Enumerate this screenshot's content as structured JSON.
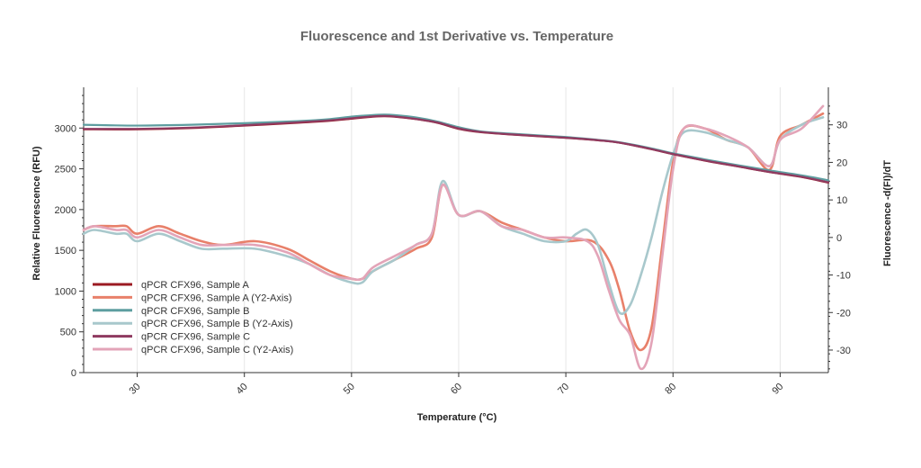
{
  "chart_data": {
    "type": "line",
    "title": "Fluorescence and 1st Derivative vs. Temperature",
    "xlabel": "Temperature (°C)",
    "ylabel": "Relative Fluorescence (RFU)",
    "y2label": "Fluorescence -d(FI)/dT",
    "xlim": [
      25,
      94.5
    ],
    "ylim": [
      0,
      3500
    ],
    "y2lim": [
      -36,
      40
    ],
    "xticks": [
      30,
      40,
      50,
      60,
      70,
      80,
      90
    ],
    "yticks": [
      0,
      500,
      1000,
      1500,
      2000,
      2500,
      3000
    ],
    "y2ticks": [
      -30,
      -20,
      -10,
      0,
      10,
      20,
      30
    ],
    "grid": "vertical",
    "legend_position": "bottom-left",
    "series": [
      {
        "name": "qPCR CFX96, Sample A",
        "axis": "y",
        "color": "#9b1a22",
        "x": [
          25,
          30,
          35,
          40,
          45,
          48,
          50,
          52,
          53,
          54,
          56,
          58,
          60,
          62,
          65,
          70,
          73,
          75,
          78,
          80,
          83,
          86,
          89,
          92,
          94.5
        ],
        "values": [
          2985,
          2985,
          3000,
          3030,
          3065,
          3090,
          3115,
          3140,
          3145,
          3140,
          3110,
          3065,
          2990,
          2950,
          2920,
          2880,
          2850,
          2820,
          2740,
          2680,
          2600,
          2530,
          2460,
          2400,
          2330
        ]
      },
      {
        "name": "qPCR CFX96, Sample A (Y2-Axis)",
        "axis": "y2",
        "color": "#e8806a",
        "x": [
          25,
          26,
          28,
          29,
          30,
          32,
          34,
          36,
          38,
          41,
          44,
          46,
          48,
          50,
          51,
          52,
          54,
          56,
          57.5,
          58.5,
          60,
          62,
          64,
          66,
          68,
          70,
          72.5,
          74,
          75,
          76,
          77,
          78,
          79,
          80,
          81,
          83,
          85,
          87,
          89,
          90,
          92,
          94
        ],
        "values": [
          2,
          3,
          3,
          3,
          1,
          3,
          1,
          -1,
          -2,
          -1,
          -3,
          -6,
          -9,
          -11,
          -11,
          -9,
          -6,
          -3,
          0,
          14,
          6,
          7,
          4,
          2,
          0,
          -1,
          -1,
          -6,
          -14,
          -25,
          -30,
          -24,
          -2,
          20,
          29,
          29,
          26,
          24,
          18,
          27,
          30,
          33
        ]
      },
      {
        "name": "qPCR CFX96, Sample B",
        "axis": "y",
        "color": "#5e9ea0",
        "x": [
          25,
          30,
          35,
          40,
          45,
          48,
          50,
          52,
          53,
          54,
          56,
          58,
          60,
          62,
          65,
          70,
          73,
          75,
          78,
          80,
          83,
          86,
          89,
          92,
          94.5
        ],
        "values": [
          3040,
          3030,
          3040,
          3060,
          3085,
          3110,
          3140,
          3160,
          3165,
          3160,
          3130,
          3080,
          3010,
          2960,
          2930,
          2890,
          2855,
          2825,
          2750,
          2690,
          2615,
          2545,
          2480,
          2420,
          2360
        ]
      },
      {
        "name": "qPCR CFX96, Sample B (Y2-Axis)",
        "axis": "y2",
        "color": "#a8c8cc",
        "x": [
          25,
          26,
          28,
          29,
          30,
          32,
          34,
          36,
          38,
          41,
          44,
          46,
          48,
          50,
          51,
          52,
          54,
          56,
          57.5,
          58.5,
          60,
          62,
          64,
          66,
          68,
          70,
          71,
          72,
          73,
          74,
          75,
          76,
          77,
          78,
          79,
          80,
          81,
          83,
          85,
          87,
          89,
          90,
          92,
          94
        ],
        "values": [
          1,
          2,
          1,
          1,
          -1,
          1,
          -1,
          -3,
          -3,
          -3,
          -5,
          -7,
          -10,
          -12,
          -12,
          -9,
          -6,
          -2,
          1,
          15,
          6,
          7,
          3,
          1,
          -1,
          -1,
          1,
          2,
          -2,
          -12,
          -20,
          -18,
          -10,
          0,
          12,
          22,
          28,
          28,
          26,
          24,
          19,
          26,
          30,
          32
        ]
      },
      {
        "name": "qPCR CFX96, Sample C",
        "axis": "y",
        "color": "#8f3a60",
        "x": [
          25,
          30,
          35,
          40,
          45,
          48,
          50,
          52,
          53,
          54,
          56,
          58,
          60,
          62,
          65,
          70,
          73,
          75,
          78,
          80,
          83,
          86,
          89,
          92,
          94.5
        ],
        "values": [
          2990,
          2990,
          3005,
          3035,
          3070,
          3095,
          3120,
          3143,
          3148,
          3142,
          3112,
          3068,
          2995,
          2953,
          2922,
          2882,
          2851,
          2821,
          2742,
          2682,
          2602,
          2532,
          2462,
          2402,
          2335
        ]
      },
      {
        "name": "qPCR CFX96, Sample C (Y2-Axis)",
        "axis": "y2",
        "color": "#e3a4b8",
        "x": [
          25,
          26,
          28,
          29,
          30,
          32,
          34,
          36,
          38,
          41,
          44,
          46,
          48,
          50,
          51,
          52,
          54,
          56,
          57.5,
          58.5,
          60,
          62,
          64,
          66,
          68,
          70,
          72,
          73,
          74,
          75,
          76,
          77,
          78,
          79,
          80,
          81,
          83,
          85,
          87,
          89,
          90,
          92,
          94
        ],
        "values": [
          2,
          3,
          2,
          2,
          0,
          2,
          0,
          -2,
          -2,
          -2,
          -4,
          -7,
          -10,
          -11,
          -11,
          -8,
          -5,
          -2,
          1,
          14,
          6,
          7,
          3,
          2,
          0,
          0,
          -1,
          -5,
          -14,
          -22,
          -26,
          -35,
          -28,
          -5,
          18,
          29,
          29,
          27,
          24,
          19,
          26,
          29,
          35
        ]
      }
    ]
  }
}
